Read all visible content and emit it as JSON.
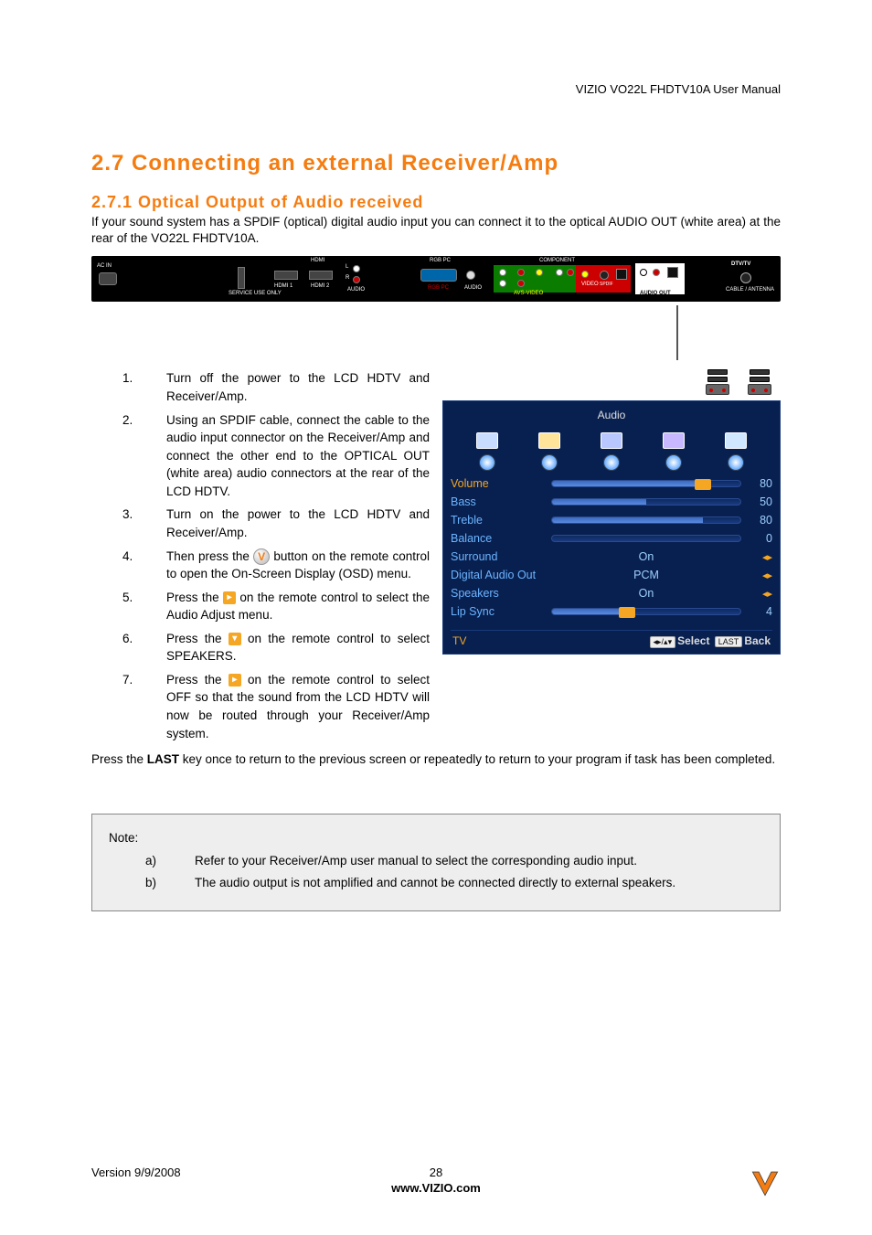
{
  "header": {
    "docTitle": "VIZIO VO22L FHDTV10A User Manual"
  },
  "section": {
    "number": "2.7",
    "title": "2.7  Connecting an external Receiver/Amp",
    "sub": {
      "number": "2.7.1",
      "title": "2.7.1 Optical Output of Audio received",
      "intro": "If your sound system has a SPDIF (optical) digital audio input you can connect it to the optical AUDIO OUT (white area) at the rear of the VO22L FHDTV10A."
    }
  },
  "ports": {
    "ac_in": "AC IN",
    "service": "SERVICE USE ONLY",
    "hdmi": "HDMI",
    "hdmi1": "HDMI 1",
    "hdmi2": "HDMI 2",
    "audio_lr_l": "L",
    "audio_lr_r": "R",
    "audio": "AUDIO",
    "rgb_pc": "RGB PC",
    "rgb_pc2": "RGB PC",
    "audio2": "AUDIO",
    "component": "COMPONENT",
    "avs_video": "AVS-VIDEO",
    "audio_out": "AUDIO OUT",
    "dtv": "DTV/TV",
    "cable": "CABLE / ANTENNA",
    "video": "VIDEO",
    "spdif": "SPDIF"
  },
  "steps": [
    {
      "n": "1.",
      "t": "Turn off the power to the LCD HDTV and Receiver/Amp."
    },
    {
      "n": "2.",
      "t": "Using an SPDIF cable, connect the cable to the audio input connector on the Receiver/Amp and connect the other end to the OPTICAL OUT (white area) audio connectors at the rear of the LCD HDTV."
    },
    {
      "n": "3.",
      "t": "Turn on the power to the LCD HDTV and Receiver/Amp."
    },
    {
      "n": "4.",
      "pre": "Then press the ",
      "post": " button on the remote control to open the On-Screen Display (OSD) menu."
    },
    {
      "n": "5.",
      "pre": "Press the ",
      "post": " on the remote control to select the Audio Adjust menu."
    },
    {
      "n": "6.",
      "pre": "Press the ",
      "post": " on the remote control to select SPEAKERS."
    },
    {
      "n": "7.",
      "pre": "Press the ",
      "post": " on the remote control to select OFF so that the sound from the LCD HDTV will now be routed through your Receiver/Amp system."
    }
  ],
  "afterSteps": "Press the LAST key once to return to the previous screen or repeatedly to return to your program if task has been completed.",
  "lastWord": "LAST",
  "osd": {
    "title": "Audio",
    "background": "#082050",
    "text_color": "#6bb4ff",
    "accent_color": "#f5a623",
    "value_color": "#9ed0ff",
    "rows": [
      {
        "label": "Volume",
        "kind": "slider",
        "value": 80,
        "max": 100,
        "selected": true
      },
      {
        "label": "Bass",
        "kind": "slider",
        "value": 50,
        "max": 100
      },
      {
        "label": "Treble",
        "kind": "slider",
        "value": 80,
        "max": 100
      },
      {
        "label": "Balance",
        "kind": "slider",
        "value": 50,
        "max": 100,
        "display": "0",
        "center": true
      },
      {
        "label": "Surround",
        "kind": "text",
        "value": "On",
        "arrows": true
      },
      {
        "label": "Digital Audio Out",
        "kind": "text",
        "value": "PCM",
        "arrows": true
      },
      {
        "label": "Speakers",
        "kind": "text",
        "value": "On",
        "arrows": true
      },
      {
        "label": "Lip Sync",
        "kind": "slider",
        "value": 40,
        "max": 100,
        "display": "4",
        "grip": true
      }
    ],
    "footer": {
      "src": "TV",
      "select": "Select",
      "back": "Back",
      "lastKey": "LAST",
      "arrows": "◂▸/▴▾"
    }
  },
  "note": {
    "heading": "Note:",
    "items": [
      {
        "l": "a)",
        "t": "Refer to your Receiver/Amp user manual to select the corresponding audio input."
      },
      {
        "l": "b)",
        "t": "The audio output is not amplified and cannot be connected directly to external speakers."
      }
    ]
  },
  "footer": {
    "version": "Version 9/9/2008",
    "page": "28",
    "url": "www.VIZIO.com"
  },
  "colors": {
    "heading": "#f57c10",
    "noteBg": "#eeeeee",
    "osdBg": "#082050"
  }
}
